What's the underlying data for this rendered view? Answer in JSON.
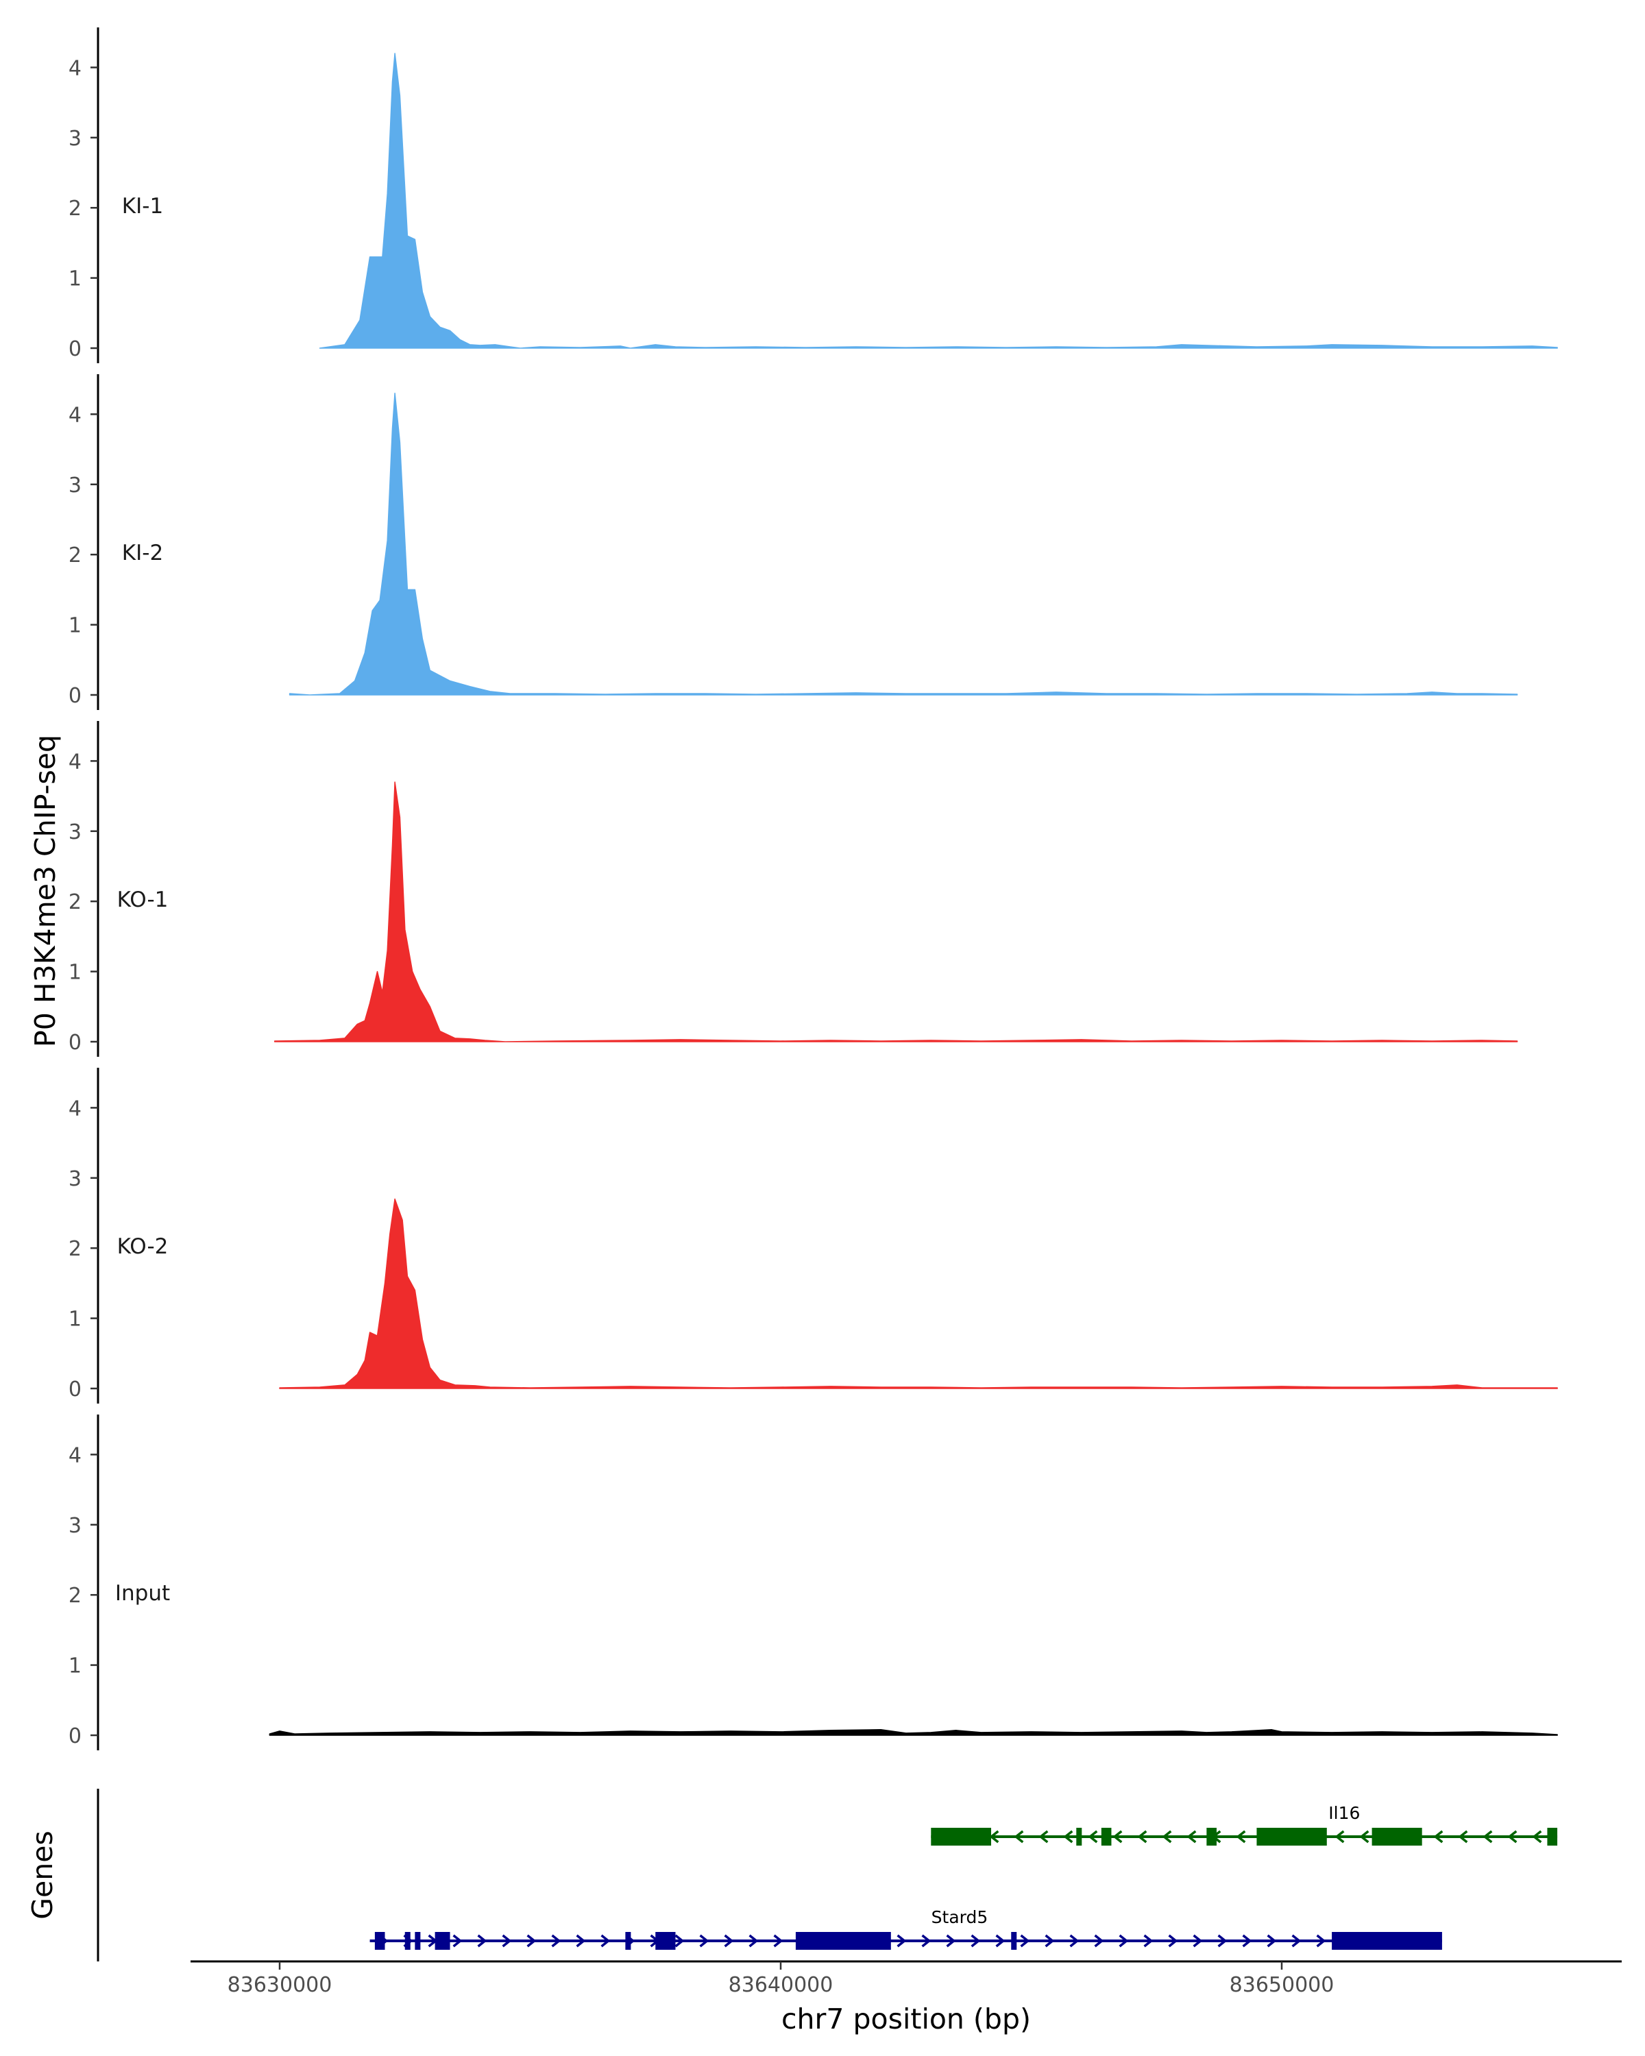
{
  "chart_data": {
    "type": "area",
    "ylabel": "P0 H3K4me3 ChIP-seq",
    "xlabel": "chr7 position (bp)",
    "genes_panel_label": "Genes",
    "x_range": [
      83627500,
      83657500
    ],
    "x_ticks": [
      83630000,
      83640000,
      83650000
    ],
    "x_tick_labels": [
      "83630000",
      "83640000",
      "83650000"
    ],
    "ylim": [
      0,
      4.5
    ],
    "y_ticks": [
      0,
      1,
      2,
      3,
      4
    ],
    "y_tick_labels": [
      "0",
      "1",
      "2",
      "3",
      "4"
    ],
    "grid": false,
    "series": [
      {
        "name": "KI-1",
        "color": "#5DADEC",
        "points": [
          [
            83630800,
            0
          ],
          [
            83631300,
            0.05
          ],
          [
            83631600,
            0.4
          ],
          [
            83631800,
            1.3
          ],
          [
            83632050,
            1.3
          ],
          [
            83632150,
            2.2
          ],
          [
            83632250,
            3.8
          ],
          [
            83632300,
            4.2
          ],
          [
            83632400,
            3.6
          ],
          [
            83632550,
            1.6
          ],
          [
            83632700,
            1.55
          ],
          [
            83632850,
            0.8
          ],
          [
            83633000,
            0.45
          ],
          [
            83633200,
            0.3
          ],
          [
            83633400,
            0.25
          ],
          [
            83633600,
            0.12
          ],
          [
            83633800,
            0.05
          ],
          [
            83634000,
            0.04
          ],
          [
            83634300,
            0.05
          ],
          [
            83634600,
            0.02
          ],
          [
            83634800,
            0
          ],
          [
            83635200,
            0.02
          ],
          [
            83636000,
            0.01
          ],
          [
            83636800,
            0.03
          ],
          [
            83637000,
            0
          ],
          [
            83637500,
            0.05
          ],
          [
            83637900,
            0.02
          ],
          [
            83638500,
            0.01
          ],
          [
            83639500,
            0.02
          ],
          [
            83640500,
            0.01
          ],
          [
            83641500,
            0.02
          ],
          [
            83642500,
            0.01
          ],
          [
            83643500,
            0.02
          ],
          [
            83644500,
            0.01
          ],
          [
            83645500,
            0.02
          ],
          [
            83646500,
            0.01
          ],
          [
            83647500,
            0.02
          ],
          [
            83648000,
            0.05
          ],
          [
            83649500,
            0.02
          ],
          [
            83650500,
            0.03
          ],
          [
            83651000,
            0.05
          ],
          [
            83652000,
            0.04
          ],
          [
            83653000,
            0.02
          ],
          [
            83654000,
            0.02
          ],
          [
            83655000,
            0.03
          ],
          [
            83655500,
            0.01
          ]
        ]
      },
      {
        "name": "KI-2",
        "color": "#5DADEC",
        "points": [
          [
            83630200,
            0.02
          ],
          [
            83630600,
            0
          ],
          [
            83631200,
            0.02
          ],
          [
            83631500,
            0.2
          ],
          [
            83631700,
            0.6
          ],
          [
            83631850,
            1.2
          ],
          [
            83632000,
            1.35
          ],
          [
            83632150,
            2.2
          ],
          [
            83632250,
            3.8
          ],
          [
            83632300,
            4.3
          ],
          [
            83632400,
            3.6
          ],
          [
            83632550,
            1.5
          ],
          [
            83632700,
            1.5
          ],
          [
            83632850,
            0.8
          ],
          [
            83633000,
            0.35
          ],
          [
            83633400,
            0.2
          ],
          [
            83633800,
            0.12
          ],
          [
            83634200,
            0.05
          ],
          [
            83634600,
            0.02
          ],
          [
            83635500,
            0.02
          ],
          [
            83636500,
            0.01
          ],
          [
            83637500,
            0.02
          ],
          [
            83638500,
            0.02
          ],
          [
            83639500,
            0.01
          ],
          [
            83640500,
            0.02
          ],
          [
            83641500,
            0.03
          ],
          [
            83642500,
            0.02
          ],
          [
            83643500,
            0.02
          ],
          [
            83644500,
            0.02
          ],
          [
            83645500,
            0.04
          ],
          [
            83646500,
            0.02
          ],
          [
            83647500,
            0.02
          ],
          [
            83648500,
            0.01
          ],
          [
            83649500,
            0.02
          ],
          [
            83650500,
            0.02
          ],
          [
            83651500,
            0.01
          ],
          [
            83652500,
            0.02
          ],
          [
            83653000,
            0.04
          ],
          [
            83653500,
            0.02
          ],
          [
            83654000,
            0.02
          ],
          [
            83654700,
            0.01
          ]
        ]
      },
      {
        "name": "KO-1",
        "color": "#EE2C2C",
        "points": [
          [
            83629900,
            0.01
          ],
          [
            83630800,
            0.02
          ],
          [
            83631300,
            0.05
          ],
          [
            83631550,
            0.25
          ],
          [
            83631700,
            0.3
          ],
          [
            83631800,
            0.55
          ],
          [
            83631950,
            1.0
          ],
          [
            83632050,
            0.7
          ],
          [
            83632150,
            1.3
          ],
          [
            83632250,
            2.8
          ],
          [
            83632300,
            3.7
          ],
          [
            83632400,
            3.2
          ],
          [
            83632500,
            1.6
          ],
          [
            83632650,
            1.0
          ],
          [
            83632800,
            0.75
          ],
          [
            83633000,
            0.5
          ],
          [
            83633200,
            0.15
          ],
          [
            83633500,
            0.05
          ],
          [
            83633800,
            0.04
          ],
          [
            83634100,
            0.02
          ],
          [
            83634500,
            0
          ],
          [
            83635500,
            0.01
          ],
          [
            83637000,
            0.02
          ],
          [
            83638000,
            0.03
          ],
          [
            83639000,
            0.02
          ],
          [
            83640000,
            0.01
          ],
          [
            83641000,
            0.02
          ],
          [
            83642000,
            0.01
          ],
          [
            83643000,
            0.02
          ],
          [
            83644000,
            0.01
          ],
          [
            83645000,
            0.02
          ],
          [
            83646000,
            0.03
          ],
          [
            83647000,
            0.01
          ],
          [
            83648000,
            0.02
          ],
          [
            83649000,
            0.01
          ],
          [
            83650000,
            0.02
          ],
          [
            83651000,
            0.01
          ],
          [
            83652000,
            0.02
          ],
          [
            83653000,
            0.01
          ],
          [
            83654000,
            0.02
          ],
          [
            83654700,
            0.01
          ]
        ]
      },
      {
        "name": "KO-2",
        "color": "#EE2C2C",
        "points": [
          [
            83630000,
            0.01
          ],
          [
            83630800,
            0.02
          ],
          [
            83631300,
            0.05
          ],
          [
            83631550,
            0.2
          ],
          [
            83631700,
            0.4
          ],
          [
            83631800,
            0.8
          ],
          [
            83631950,
            0.75
          ],
          [
            83632100,
            1.5
          ],
          [
            83632200,
            2.2
          ],
          [
            83632300,
            2.7
          ],
          [
            83632450,
            2.4
          ],
          [
            83632550,
            1.6
          ],
          [
            83632700,
            1.4
          ],
          [
            83632850,
            0.7
          ],
          [
            83633000,
            0.3
          ],
          [
            83633200,
            0.12
          ],
          [
            83633500,
            0.05
          ],
          [
            83633900,
            0.04
          ],
          [
            83634200,
            0.02
          ],
          [
            83635000,
            0.01
          ],
          [
            83636000,
            0.02
          ],
          [
            83637000,
            0.03
          ],
          [
            83638000,
            0.02
          ],
          [
            83639000,
            0.01
          ],
          [
            83640000,
            0.02
          ],
          [
            83641000,
            0.03
          ],
          [
            83642000,
            0.02
          ],
          [
            83643000,
            0.02
          ],
          [
            83644000,
            0.01
          ],
          [
            83645000,
            0.02
          ],
          [
            83646000,
            0.02
          ],
          [
            83647000,
            0.02
          ],
          [
            83648000,
            0.01
          ],
          [
            83649000,
            0.02
          ],
          [
            83650000,
            0.03
          ],
          [
            83651000,
            0.02
          ],
          [
            83652000,
            0.02
          ],
          [
            83653000,
            0.03
          ],
          [
            83653500,
            0.05
          ],
          [
            83654000,
            0.01
          ],
          [
            83655500,
            0.01
          ]
        ]
      },
      {
        "name": "Input",
        "color": "#000000",
        "points": [
          [
            83629800,
            0.02
          ],
          [
            83630000,
            0.06
          ],
          [
            83630300,
            0.02
          ],
          [
            83631000,
            0.03
          ],
          [
            83632000,
            0.04
          ],
          [
            83633000,
            0.05
          ],
          [
            83634000,
            0.04
          ],
          [
            83635000,
            0.05
          ],
          [
            83636000,
            0.04
          ],
          [
            83637000,
            0.06
          ],
          [
            83638000,
            0.05
          ],
          [
            83639000,
            0.06
          ],
          [
            83640000,
            0.05
          ],
          [
            83641000,
            0.07
          ],
          [
            83642000,
            0.08
          ],
          [
            83642500,
            0.03
          ],
          [
            83643000,
            0.04
          ],
          [
            83643500,
            0.07
          ],
          [
            83644000,
            0.04
          ],
          [
            83645000,
            0.05
          ],
          [
            83646000,
            0.04
          ],
          [
            83647000,
            0.05
          ],
          [
            83648000,
            0.06
          ],
          [
            83648500,
            0.04
          ],
          [
            83649000,
            0.05
          ],
          [
            83649800,
            0.08
          ],
          [
            83650000,
            0.05
          ],
          [
            83651000,
            0.04
          ],
          [
            83652000,
            0.05
          ],
          [
            83653000,
            0.04
          ],
          [
            83654000,
            0.05
          ],
          [
            83655000,
            0.03
          ],
          [
            83655500,
            0.01
          ]
        ]
      }
    ],
    "genes": [
      {
        "name": "Il16",
        "strand": "-",
        "color": "#006400",
        "start": 83643000,
        "end": 83655500,
        "exons": [
          [
            83643000,
            83644200
          ],
          [
            83645900,
            83646000
          ],
          [
            83646400,
            83646600
          ],
          [
            83648500,
            83648700
          ],
          [
            83649500,
            83650900
          ],
          [
            83651800,
            83652800
          ],
          [
            83655300,
            83655500
          ]
        ]
      },
      {
        "name": "Stard5",
        "strand": "+",
        "color": "#00008B",
        "start": 83631800,
        "end": 83653200,
        "exons": [
          [
            83631900,
            83632100
          ],
          [
            83632500,
            83632550
          ],
          [
            83632700,
            83632750
          ],
          [
            83633100,
            83633400
          ],
          [
            83636900,
            83637000
          ],
          [
            83637500,
            83637900
          ],
          [
            83640300,
            83642200
          ],
          [
            83644600,
            83644700
          ],
          [
            83651000,
            83653200
          ]
        ]
      }
    ]
  }
}
